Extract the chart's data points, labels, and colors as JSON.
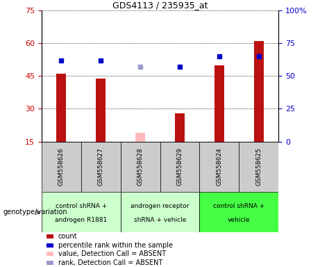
{
  "title": "GDS4113 / 235935_at",
  "samples": [
    "GSM558626",
    "GSM558627",
    "GSM558628",
    "GSM558629",
    "GSM558624",
    "GSM558625"
  ],
  "bar_values": [
    46,
    44,
    null,
    28,
    50,
    61
  ],
  "bar_absent_values": [
    null,
    null,
    19,
    null,
    null,
    null
  ],
  "dot_values": [
    62,
    62,
    null,
    57,
    65,
    65
  ],
  "dot_absent_values": [
    null,
    null,
    57,
    null,
    null,
    null
  ],
  "bar_color": "#bb1111",
  "bar_absent_color": "#ffbbbb",
  "dot_color": "#0000cc",
  "dot_absent_color": "#9999cc",
  "ylim_left": [
    15,
    75
  ],
  "ylim_right": [
    0,
    100
  ],
  "yticks_left": [
    15,
    30,
    45,
    60,
    75
  ],
  "ytick_labels_left": [
    "15",
    "30",
    "45",
    "60",
    "75"
  ],
  "yticks_right": [
    0,
    25,
    50,
    75,
    100
  ],
  "ytick_labels_right": [
    "0",
    "25",
    "50",
    "75",
    "100%"
  ],
  "group_defs": [
    {
      "indices": [
        0,
        1
      ],
      "color": "#ccffcc",
      "label1": "control shRNA +",
      "label2": "androgen R1881"
    },
    {
      "indices": [
        2,
        3
      ],
      "color": "#ccffcc",
      "label1": "androgen receptor",
      "label2": "shRNA + vehicle"
    },
    {
      "indices": [
        4,
        5
      ],
      "color": "#44ff44",
      "label1": "control shRNA +",
      "label2": "vehicle"
    }
  ],
  "legend_items": [
    {
      "label": "count",
      "color": "#bb1111"
    },
    {
      "label": "percentile rank within the sample",
      "color": "#0000cc"
    },
    {
      "label": "value, Detection Call = ABSENT",
      "color": "#ffbbbb"
    },
    {
      "label": "rank, Detection Call = ABSENT",
      "color": "#9999cc"
    }
  ],
  "xlabel_label": "genotype/variation",
  "bg_color": "#ffffff",
  "plot_bg": "#ffffff",
  "tick_label_color_left": "#cc0000",
  "tick_label_color_right": "#0000cc",
  "sample_cell_color": "#cccccc",
  "bar_width": 0.25
}
